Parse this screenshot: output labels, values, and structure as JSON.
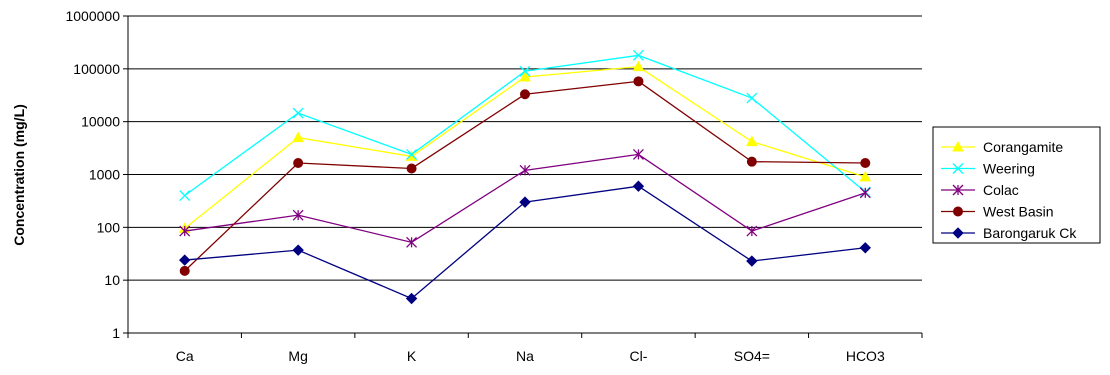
{
  "chart_data": {
    "type": "line",
    "categories": [
      "Ca",
      "Mg",
      "K",
      "Na",
      "Cl-",
      "SO4=",
      "HCO3"
    ],
    "ylabel": "Concentration (mg/L)",
    "yscale": "log",
    "ylim": [
      1,
      1000000
    ],
    "yticks": [
      "1",
      "10",
      "100",
      "1000",
      "10000",
      "100000",
      "1000000"
    ],
    "grid": "horizontal",
    "legend_position": "right",
    "series": [
      {
        "name": "Corangamite",
        "color": "#ffff00",
        "marker": "triangle",
        "values": [
          95,
          5000,
          2200,
          70000,
          110000,
          4200,
          900
        ]
      },
      {
        "name": "Weering",
        "color": "#00ffff",
        "marker": "x",
        "values": [
          400,
          14500,
          2400,
          90000,
          180000,
          28000,
          470
        ]
      },
      {
        "name": "Colac",
        "color": "#800080",
        "marker": "asterisk",
        "values": [
          85,
          170,
          52,
          1200,
          2400,
          85,
          450
        ]
      },
      {
        "name": "West Basin",
        "color": "#800000",
        "marker": "circle",
        "values": [
          15,
          1650,
          1300,
          33000,
          58000,
          1750,
          1650
        ]
      },
      {
        "name": "Barongaruk Ck",
        "color": "#000080",
        "marker": "diamond",
        "values": [
          24,
          37,
          4.5,
          300,
          600,
          23,
          41
        ]
      }
    ]
  }
}
